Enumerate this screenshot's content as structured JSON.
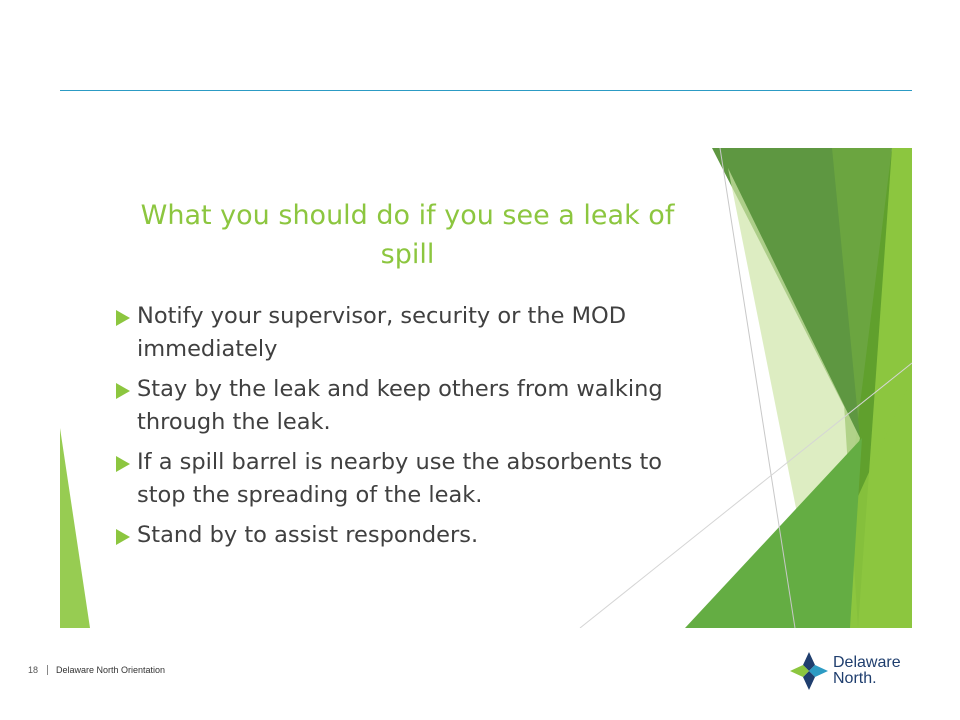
{
  "slide": {
    "title": "What you should do if you see a leak of spill",
    "bullets": [
      "Notify your supervisor, security or the MOD immediately",
      "Stay by the leak and keep others from walking through the leak.",
      "If a spill barrel is nearby use the absorbents to stop the spreading of the leak.",
      "Stand by to assist responders."
    ]
  },
  "footer": {
    "page_number": "18",
    "text": "Delaware North Orientation"
  },
  "logo": {
    "line1": "Delaware",
    "line2": "North."
  },
  "colors": {
    "title_green": "#8cc63f",
    "body_text": "#404040",
    "rule_blue": "#2c9bc4",
    "logo_navy": "#1f3e6e"
  }
}
